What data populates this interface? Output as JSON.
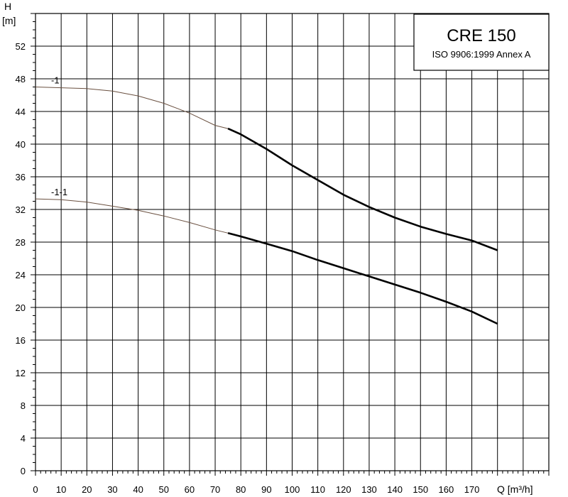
{
  "legend": {
    "title": "CRE 150",
    "subtitle": "ISO 9906:1999 Annex A"
  },
  "chart_data": {
    "type": "line",
    "title": "",
    "xlabel": "Q [m³/h]",
    "ylabel_top": "H",
    "ylabel_unit": "[m]",
    "xlim": [
      0,
      200
    ],
    "ylim": [
      0,
      56
    ],
    "x_ticks": [
      0,
      10,
      20,
      30,
      40,
      50,
      60,
      70,
      80,
      90,
      100,
      110,
      120,
      130,
      140,
      150,
      160,
      170
    ],
    "y_ticks": [
      0,
      4,
      8,
      12,
      16,
      20,
      24,
      28,
      32,
      36,
      40,
      44,
      48,
      52
    ],
    "grid": true,
    "legend_position": "top-right",
    "series": [
      {
        "name": "-1",
        "x": [
          0,
          10,
          20,
          30,
          40,
          50,
          60,
          70,
          75,
          80,
          90,
          100,
          110,
          120,
          130,
          140,
          150,
          160,
          170,
          180
        ],
        "y": [
          47,
          46.9,
          46.8,
          46.5,
          45.9,
          45.0,
          43.8,
          42.3,
          41.9,
          41.2,
          39.4,
          37.4,
          35.6,
          33.8,
          32.3,
          31.0,
          29.9,
          29.0,
          28.2,
          27.0
        ]
      },
      {
        "name": "-1-1",
        "x": [
          0,
          10,
          20,
          30,
          40,
          50,
          60,
          70,
          75,
          80,
          90,
          100,
          110,
          120,
          130,
          140,
          150,
          160,
          170,
          180
        ],
        "y": [
          33.3,
          33.2,
          32.9,
          32.4,
          31.9,
          31.2,
          30.4,
          29.5,
          29.1,
          28.7,
          27.8,
          26.9,
          25.8,
          24.8,
          23.8,
          22.8,
          21.8,
          20.7,
          19.5,
          18.0
        ]
      }
    ]
  }
}
